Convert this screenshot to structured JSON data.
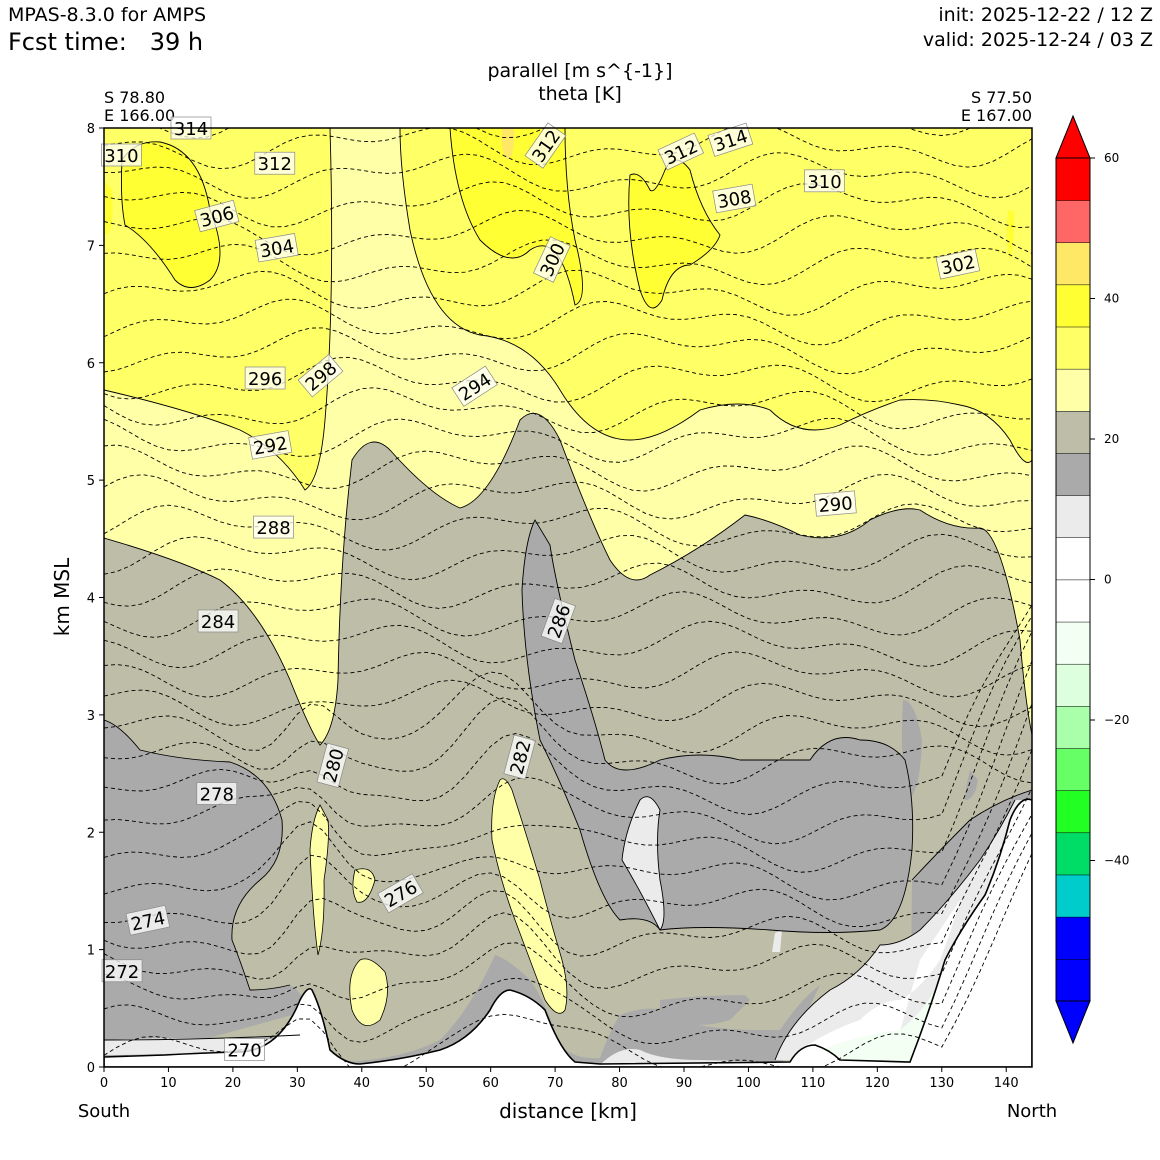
{
  "header": {
    "model": "MPAS-8.3.0 for AMPS",
    "fcst_label": "Fcst time:",
    "fcst_value": "39 h",
    "init": "init: 2025-12-22 / 12 Z",
    "valid": "valid: 2025-12-24 / 03 Z"
  },
  "endpoints": {
    "left_lat": "S 78.80",
    "left_lon": "E 166.00",
    "right_lat": "S 77.50",
    "right_lon": "E 167.00",
    "left_dir": "South",
    "right_dir": "North"
  },
  "chart_data": {
    "type": "contour",
    "title_lines": [
      "parallel [m s^{-1}]",
      "theta [K]"
    ],
    "xlabel": "distance [km]",
    "ylabel": "km MSL",
    "xlim": [
      0,
      144
    ],
    "ylim": [
      0,
      8
    ],
    "x_ticks": [
      0,
      10,
      20,
      30,
      40,
      50,
      60,
      70,
      80,
      90,
      100,
      110,
      120,
      130,
      140
    ],
    "y_ticks": [
      0,
      1,
      2,
      3,
      4,
      5,
      6,
      7,
      8
    ],
    "colorbar": {
      "vmin": -60,
      "vmax": 60,
      "tick_values": [
        -40,
        -20,
        0,
        20,
        40,
        60
      ],
      "tick_labels": [
        "−40",
        "−20",
        "0",
        "20",
        "40",
        "60"
      ],
      "colors": [
        "#0000ff",
        "#0000ff",
        "#00cccc",
        "#00dd66",
        "#22ff22",
        "#66ff66",
        "#aaffaa",
        "#ddffdd",
        "#f2fff2",
        "#ffffff",
        "#ffffff",
        "#ebebeb",
        "#aaaaaa",
        "#bebea8",
        "#ffffa8",
        "#ffff66",
        "#ffff33",
        "#ffe866",
        "#ff6666",
        "#ff0000"
      ],
      "under_color": "#0000ff",
      "over_color": "#ff0000"
    },
    "theta_labels": [
      {
        "value": "314",
        "x": 13.5,
        "y": 8.0,
        "angle": 0
      },
      {
        "value": "310",
        "x": 2.7,
        "y": 7.77,
        "angle": 0
      },
      {
        "value": "312",
        "x": 26.5,
        "y": 7.7,
        "angle": 0
      },
      {
        "value": "306",
        "x": 17.5,
        "y": 7.25,
        "angle": -15
      },
      {
        "value": "304",
        "x": 26.8,
        "y": 6.98,
        "angle": -10
      },
      {
        "value": "296",
        "x": 25.0,
        "y": 5.87,
        "angle": 0
      },
      {
        "value": "298",
        "x": 33.6,
        "y": 5.89,
        "angle": -40
      },
      {
        "value": "292",
        "x": 25.8,
        "y": 5.3,
        "angle": -10
      },
      {
        "value": "288",
        "x": 26.3,
        "y": 4.6,
        "angle": 0
      },
      {
        "value": "284",
        "x": 17.7,
        "y": 3.8,
        "angle": 0
      },
      {
        "value": "278",
        "x": 17.5,
        "y": 2.33,
        "angle": 0
      },
      {
        "value": "280",
        "x": 35.5,
        "y": 2.57,
        "angle": -75
      },
      {
        "value": "282",
        "x": 64.5,
        "y": 2.64,
        "angle": -75
      },
      {
        "value": "286",
        "x": 70.5,
        "y": 3.8,
        "angle": -70
      },
      {
        "value": "276",
        "x": 46.0,
        "y": 1.48,
        "angle": -30
      },
      {
        "value": "274",
        "x": 6.8,
        "y": 1.25,
        "angle": -12
      },
      {
        "value": "272",
        "x": 2.8,
        "y": 0.82,
        "angle": 0
      },
      {
        "value": "270",
        "x": 21.8,
        "y": 0.15,
        "angle": 0
      },
      {
        "value": "294",
        "x": 57.5,
        "y": 5.8,
        "angle": -33
      },
      {
        "value": "300",
        "x": 69.5,
        "y": 6.88,
        "angle": -65
      },
      {
        "value": "312",
        "x": 68.5,
        "y": 7.85,
        "angle": -55
      },
      {
        "value": "312",
        "x": 89.5,
        "y": 7.8,
        "angle": -25
      },
      {
        "value": "314",
        "x": 97.2,
        "y": 7.9,
        "angle": -18
      },
      {
        "value": "308",
        "x": 97.8,
        "y": 7.4,
        "angle": -10
      },
      {
        "value": "310",
        "x": 111.8,
        "y": 7.55,
        "angle": 0
      },
      {
        "value": "302",
        "x": 132.5,
        "y": 6.84,
        "angle": -12
      },
      {
        "value": "290",
        "x": 113.5,
        "y": 4.8,
        "angle": -5
      }
    ]
  }
}
